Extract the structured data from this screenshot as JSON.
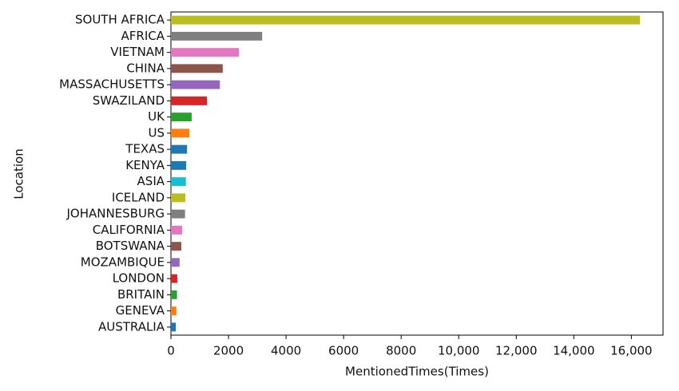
{
  "chart_data": {
    "type": "barh",
    "xlabel": "MentionedTimes(Times)",
    "ylabel": "Location",
    "categories": [
      "SOUTH AFRICA",
      "AFRICA",
      "VIETNAM",
      "CHINA",
      "MASSACHUSETTS",
      "SWAZILAND",
      "UK",
      "US",
      "TEXAS",
      "KENYA",
      "ASIA",
      "ICELAND",
      "JOHANNESBURG",
      "CALIFORNIA",
      "BOTSWANA",
      "MOZAMBIQUE",
      "LONDON",
      "BRITAIN",
      "GENEVA",
      "AUSTRALIA"
    ],
    "values": [
      16300,
      3170,
      2360,
      1800,
      1700,
      1250,
      720,
      640,
      560,
      530,
      520,
      500,
      490,
      390,
      360,
      300,
      220,
      210,
      190,
      170
    ],
    "colors": [
      "#bcbd22",
      "#7f7f7f",
      "#e377c2",
      "#8c564b",
      "#9467bd",
      "#d62728",
      "#2ca02c",
      "#ff7f0e",
      "#1f77b4",
      "#1f77b4",
      "#17becf",
      "#bcbd22",
      "#7f7f7f",
      "#e377c2",
      "#8c564b",
      "#9467bd",
      "#d62728",
      "#2ca02c",
      "#ff7f0e",
      "#1f77b4"
    ],
    "xlim": [
      0,
      17100
    ],
    "xticks": [
      0,
      2000,
      4000,
      6000,
      8000,
      {
        "value": 10000,
        "label": "10,000"
      },
      {
        "value": 12000,
        "label": "12,000"
      },
      {
        "value": 14000,
        "label": "14,000"
      },
      {
        "value": 16000,
        "label": "16,000"
      }
    ],
    "grid": false
  }
}
